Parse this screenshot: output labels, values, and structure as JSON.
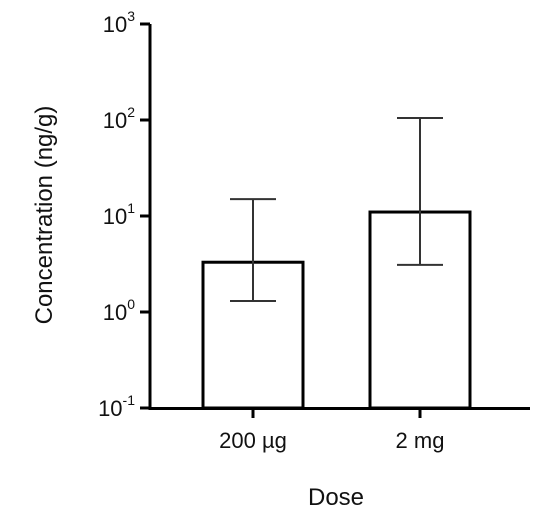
{
  "chart_data": {
    "type": "bar",
    "xlabel": "Dose",
    "ylabel": "Concentration (ng/g)",
    "yscale": "log",
    "ylim": [
      0.1,
      1000
    ],
    "yticks": [
      {
        "base": "10",
        "exp": "-1"
      },
      {
        "base": "10",
        "exp": "0"
      },
      {
        "base": "10",
        "exp": "1"
      },
      {
        "base": "10",
        "exp": "2"
      },
      {
        "base": "10",
        "exp": "3"
      }
    ],
    "categories": [
      "200 µg",
      "2 mg"
    ],
    "values": [
      3.3,
      11
    ],
    "error_low": [
      1.3,
      3.1
    ],
    "error_high": [
      15,
      105
    ],
    "bar_fill": "#ffffff",
    "bar_stroke": "#000000",
    "errorbar_color": "#333333",
    "grid": false,
    "legend": "none"
  }
}
